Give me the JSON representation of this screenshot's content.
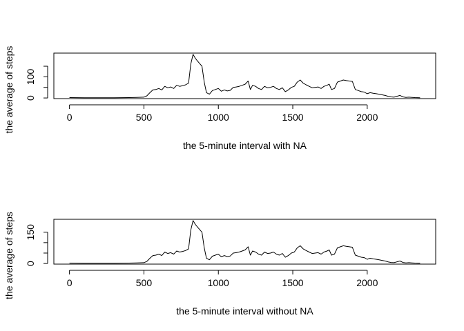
{
  "chart_data": [
    {
      "type": "line",
      "title": "",
      "xlabel": "the 5-minute interval with NA",
      "ylabel": "the average of steps",
      "xlim": [
        -105,
        2460
      ],
      "ylim": [
        -3,
        212
      ],
      "xticks": [
        0,
        500,
        1000,
        1500,
        2000
      ],
      "yticks": [
        0,
        100
      ],
      "yticks_minor": [
        0,
        50,
        100,
        150
      ],
      "grid": false,
      "legend": "none",
      "series": [
        {
          "x": [
            0,
            100,
            200,
            300,
            400,
            450,
            500,
            520,
            540,
            560,
            580,
            600,
            620,
            640,
            660,
            680,
            700,
            720,
            740,
            760,
            780,
            800,
            815,
            830,
            845,
            860,
            875,
            890,
            905,
            920,
            940,
            960,
            980,
            1000,
            1020,
            1040,
            1060,
            1080,
            1100,
            1120,
            1140,
            1160,
            1180,
            1200,
            1215,
            1230,
            1250,
            1270,
            1290,
            1310,
            1330,
            1350,
            1370,
            1390,
            1410,
            1430,
            1450,
            1470,
            1490,
            1510,
            1530,
            1550,
            1570,
            1590,
            1610,
            1630,
            1650,
            1670,
            1690,
            1710,
            1730,
            1745,
            1760,
            1780,
            1800,
            1820,
            1840,
            1860,
            1880,
            1900,
            1920,
            1940,
            1960,
            1980,
            2000,
            2020,
            2040,
            2060,
            2080,
            2100,
            2120,
            2140,
            2160,
            2180,
            2200,
            2220,
            2240,
            2260,
            2280,
            2300,
            2320,
            2355
          ],
          "y": [
            2,
            1,
            1,
            1,
            2,
            3,
            4,
            10,
            25,
            38,
            40,
            45,
            38,
            55,
            48,
            52,
            45,
            60,
            55,
            58,
            62,
            70,
            160,
            206,
            188,
            175,
            162,
            150,
            75,
            25,
            18,
            35,
            40,
            45,
            32,
            38,
            33,
            36,
            50,
            52,
            55,
            60,
            65,
            80,
            40,
            60,
            55,
            45,
            40,
            55,
            48,
            50,
            55,
            45,
            40,
            48,
            30,
            38,
            50,
            55,
            75,
            85,
            70,
            62,
            55,
            48,
            50,
            52,
            45,
            55,
            60,
            65,
            40,
            45,
            75,
            80,
            85,
            82,
            80,
            78,
            40,
            35,
            30,
            28,
            20,
            25,
            22,
            20,
            18,
            15,
            12,
            8,
            5,
            4,
            8,
            12,
            5,
            3,
            4,
            3,
            2,
            1
          ]
        }
      ]
    },
    {
      "type": "line",
      "title": "",
      "xlabel": "the 5-minute interval without NA",
      "ylabel": "the average of steps",
      "xlim": [
        -105,
        2460
      ],
      "ylim": [
        -3,
        212
      ],
      "xticks": [
        0,
        500,
        1000,
        1500,
        2000
      ],
      "yticks": [
        0,
        150
      ],
      "yticks_minor": [
        0,
        50,
        100,
        150
      ],
      "grid": false,
      "legend": "none",
      "series": [
        {
          "x": [
            0,
            100,
            200,
            300,
            400,
            450,
            500,
            520,
            540,
            560,
            580,
            600,
            620,
            640,
            660,
            680,
            700,
            720,
            740,
            760,
            780,
            800,
            815,
            830,
            845,
            860,
            875,
            890,
            905,
            920,
            940,
            960,
            980,
            1000,
            1020,
            1040,
            1060,
            1080,
            1100,
            1120,
            1140,
            1160,
            1180,
            1200,
            1215,
            1230,
            1250,
            1270,
            1290,
            1310,
            1330,
            1350,
            1370,
            1390,
            1410,
            1430,
            1450,
            1470,
            1490,
            1510,
            1530,
            1550,
            1570,
            1590,
            1610,
            1630,
            1650,
            1670,
            1690,
            1710,
            1730,
            1745,
            1760,
            1780,
            1800,
            1820,
            1840,
            1860,
            1880,
            1900,
            1920,
            1940,
            1960,
            1980,
            2000,
            2020,
            2040,
            2060,
            2080,
            2100,
            2120,
            2140,
            2160,
            2180,
            2200,
            2220,
            2240,
            2260,
            2280,
            2300,
            2320,
            2355
          ],
          "y": [
            2,
            1,
            1,
            1,
            2,
            3,
            4,
            10,
            25,
            38,
            40,
            45,
            38,
            55,
            48,
            52,
            45,
            60,
            55,
            58,
            62,
            70,
            160,
            206,
            188,
            175,
            162,
            150,
            75,
            25,
            18,
            35,
            40,
            45,
            32,
            38,
            33,
            36,
            50,
            52,
            55,
            60,
            65,
            80,
            40,
            60,
            55,
            45,
            40,
            55,
            48,
            50,
            55,
            45,
            40,
            48,
            30,
            38,
            50,
            55,
            75,
            85,
            70,
            62,
            55,
            48,
            50,
            52,
            45,
            55,
            60,
            65,
            40,
            45,
            75,
            80,
            85,
            82,
            80,
            78,
            40,
            35,
            30,
            28,
            20,
            25,
            22,
            20,
            18,
            15,
            12,
            8,
            5,
            4,
            8,
            12,
            5,
            3,
            4,
            3,
            2,
            1
          ]
        }
      ]
    }
  ]
}
